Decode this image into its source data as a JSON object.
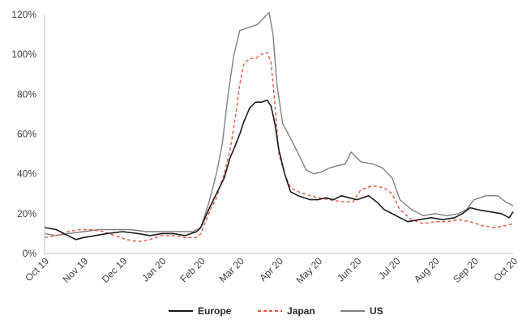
{
  "chart_data": {
    "type": "line",
    "title": "",
    "xlabel": "",
    "ylabel": "",
    "ylim": [
      0,
      120
    ],
    "y_ticks": [
      "0%",
      "20%",
      "40%",
      "60%",
      "80%",
      "100%",
      "120%"
    ],
    "x_ticks": [
      "Oct 19",
      "Nov 19",
      "Dec 19",
      "Jan 20",
      "Feb 20",
      "Mar 20",
      "Apr 20",
      "May 20",
      "Jun 20",
      "Jul 20",
      "Aug 20",
      "Sep 20",
      "Oct 20"
    ],
    "grid": false,
    "legend_position": "bottom",
    "series": [
      {
        "name": "Europe",
        "color": "#1a1a1a",
        "dash": "solid",
        "points": [
          [
            0.0,
            13
          ],
          [
            0.3,
            12
          ],
          [
            0.6,
            9
          ],
          [
            0.8,
            7
          ],
          [
            1.0,
            8
          ],
          [
            1.3,
            9
          ],
          [
            1.6,
            10
          ],
          [
            2.0,
            11
          ],
          [
            2.4,
            10
          ],
          [
            2.7,
            9
          ],
          [
            3.0,
            10
          ],
          [
            3.3,
            10
          ],
          [
            3.6,
            9
          ],
          [
            3.9,
            11
          ],
          [
            4.0,
            13
          ],
          [
            4.2,
            22
          ],
          [
            4.4,
            30
          ],
          [
            4.6,
            38
          ],
          [
            4.75,
            48
          ],
          [
            4.9,
            55
          ],
          [
            5.0,
            60
          ],
          [
            5.1,
            66
          ],
          [
            5.25,
            73
          ],
          [
            5.4,
            76
          ],
          [
            5.55,
            76
          ],
          [
            5.7,
            77
          ],
          [
            5.8,
            74
          ],
          [
            5.9,
            65
          ],
          [
            6.0,
            52
          ],
          [
            6.15,
            40
          ],
          [
            6.3,
            31
          ],
          [
            6.5,
            29
          ],
          [
            6.8,
            27
          ],
          [
            7.0,
            27
          ],
          [
            7.2,
            28
          ],
          [
            7.4,
            27
          ],
          [
            7.6,
            29
          ],
          [
            7.8,
            28
          ],
          [
            8.0,
            27
          ],
          [
            8.3,
            29
          ],
          [
            8.5,
            26
          ],
          [
            8.7,
            22
          ],
          [
            9.0,
            19
          ],
          [
            9.3,
            16
          ],
          [
            9.6,
            17
          ],
          [
            9.9,
            18
          ],
          [
            10.2,
            17
          ],
          [
            10.5,
            18
          ],
          [
            10.7,
            20
          ],
          [
            10.9,
            23
          ],
          [
            11.1,
            22
          ],
          [
            11.4,
            21
          ],
          [
            11.7,
            20
          ],
          [
            11.9,
            18
          ],
          [
            12.0,
            21
          ]
        ]
      },
      {
        "name": "Japan",
        "color": "#e8553f",
        "dash": "dashed",
        "points": [
          [
            0.0,
            8
          ],
          [
            0.3,
            9
          ],
          [
            0.6,
            11
          ],
          [
            0.9,
            12
          ],
          [
            1.2,
            12
          ],
          [
            1.5,
            11
          ],
          [
            1.8,
            9
          ],
          [
            2.1,
            7
          ],
          [
            2.4,
            6
          ],
          [
            2.7,
            7
          ],
          [
            3.0,
            9
          ],
          [
            3.3,
            9
          ],
          [
            3.6,
            8
          ],
          [
            3.9,
            8
          ],
          [
            4.0,
            10
          ],
          [
            4.2,
            20
          ],
          [
            4.4,
            28
          ],
          [
            4.6,
            40
          ],
          [
            4.75,
            52
          ],
          [
            4.9,
            70
          ],
          [
            5.0,
            85
          ],
          [
            5.1,
            95
          ],
          [
            5.25,
            98
          ],
          [
            5.4,
            98
          ],
          [
            5.55,
            100
          ],
          [
            5.7,
            101
          ],
          [
            5.8,
            96
          ],
          [
            5.9,
            75
          ],
          [
            6.0,
            50
          ],
          [
            6.15,
            40
          ],
          [
            6.3,
            33
          ],
          [
            6.5,
            31
          ],
          [
            6.8,
            29
          ],
          [
            7.0,
            28
          ],
          [
            7.3,
            27
          ],
          [
            7.6,
            26
          ],
          [
            7.9,
            26
          ],
          [
            8.1,
            32
          ],
          [
            8.4,
            34
          ],
          [
            8.7,
            33
          ],
          [
            8.9,
            30
          ],
          [
            9.1,
            22
          ],
          [
            9.4,
            17
          ],
          [
            9.7,
            15
          ],
          [
            10.0,
            16
          ],
          [
            10.3,
            16
          ],
          [
            10.6,
            17
          ],
          [
            10.9,
            16
          ],
          [
            11.2,
            14
          ],
          [
            11.5,
            13
          ],
          [
            11.8,
            14
          ],
          [
            12.0,
            15
          ]
        ]
      },
      {
        "name": "US",
        "color": "#808080",
        "dash": "solid",
        "points": [
          [
            0.0,
            10
          ],
          [
            0.3,
            9
          ],
          [
            0.6,
            10
          ],
          [
            1.0,
            11
          ],
          [
            1.4,
            12
          ],
          [
            1.8,
            12
          ],
          [
            2.2,
            12
          ],
          [
            2.6,
            11
          ],
          [
            3.0,
            11
          ],
          [
            3.4,
            11
          ],
          [
            3.8,
            11
          ],
          [
            4.0,
            13
          ],
          [
            4.2,
            25
          ],
          [
            4.4,
            40
          ],
          [
            4.55,
            55
          ],
          [
            4.7,
            80
          ],
          [
            4.85,
            100
          ],
          [
            5.0,
            112
          ],
          [
            5.15,
            113
          ],
          [
            5.3,
            114
          ],
          [
            5.45,
            115
          ],
          [
            5.6,
            118
          ],
          [
            5.75,
            121
          ],
          [
            5.85,
            110
          ],
          [
            5.95,
            85
          ],
          [
            6.1,
            65
          ],
          [
            6.3,
            58
          ],
          [
            6.5,
            50
          ],
          [
            6.7,
            42
          ],
          [
            6.9,
            40
          ],
          [
            7.1,
            41
          ],
          [
            7.3,
            43
          ],
          [
            7.5,
            44
          ],
          [
            7.7,
            45
          ],
          [
            7.85,
            51
          ],
          [
            8.1,
            46
          ],
          [
            8.4,
            45
          ],
          [
            8.65,
            43
          ],
          [
            8.9,
            38
          ],
          [
            9.1,
            27
          ],
          [
            9.4,
            22
          ],
          [
            9.7,
            19
          ],
          [
            10.0,
            20
          ],
          [
            10.3,
            19
          ],
          [
            10.6,
            20
          ],
          [
            10.8,
            22
          ],
          [
            11.0,
            27
          ],
          [
            11.3,
            29
          ],
          [
            11.6,
            29
          ],
          [
            11.8,
            26
          ],
          [
            12.0,
            24
          ]
        ]
      }
    ]
  }
}
